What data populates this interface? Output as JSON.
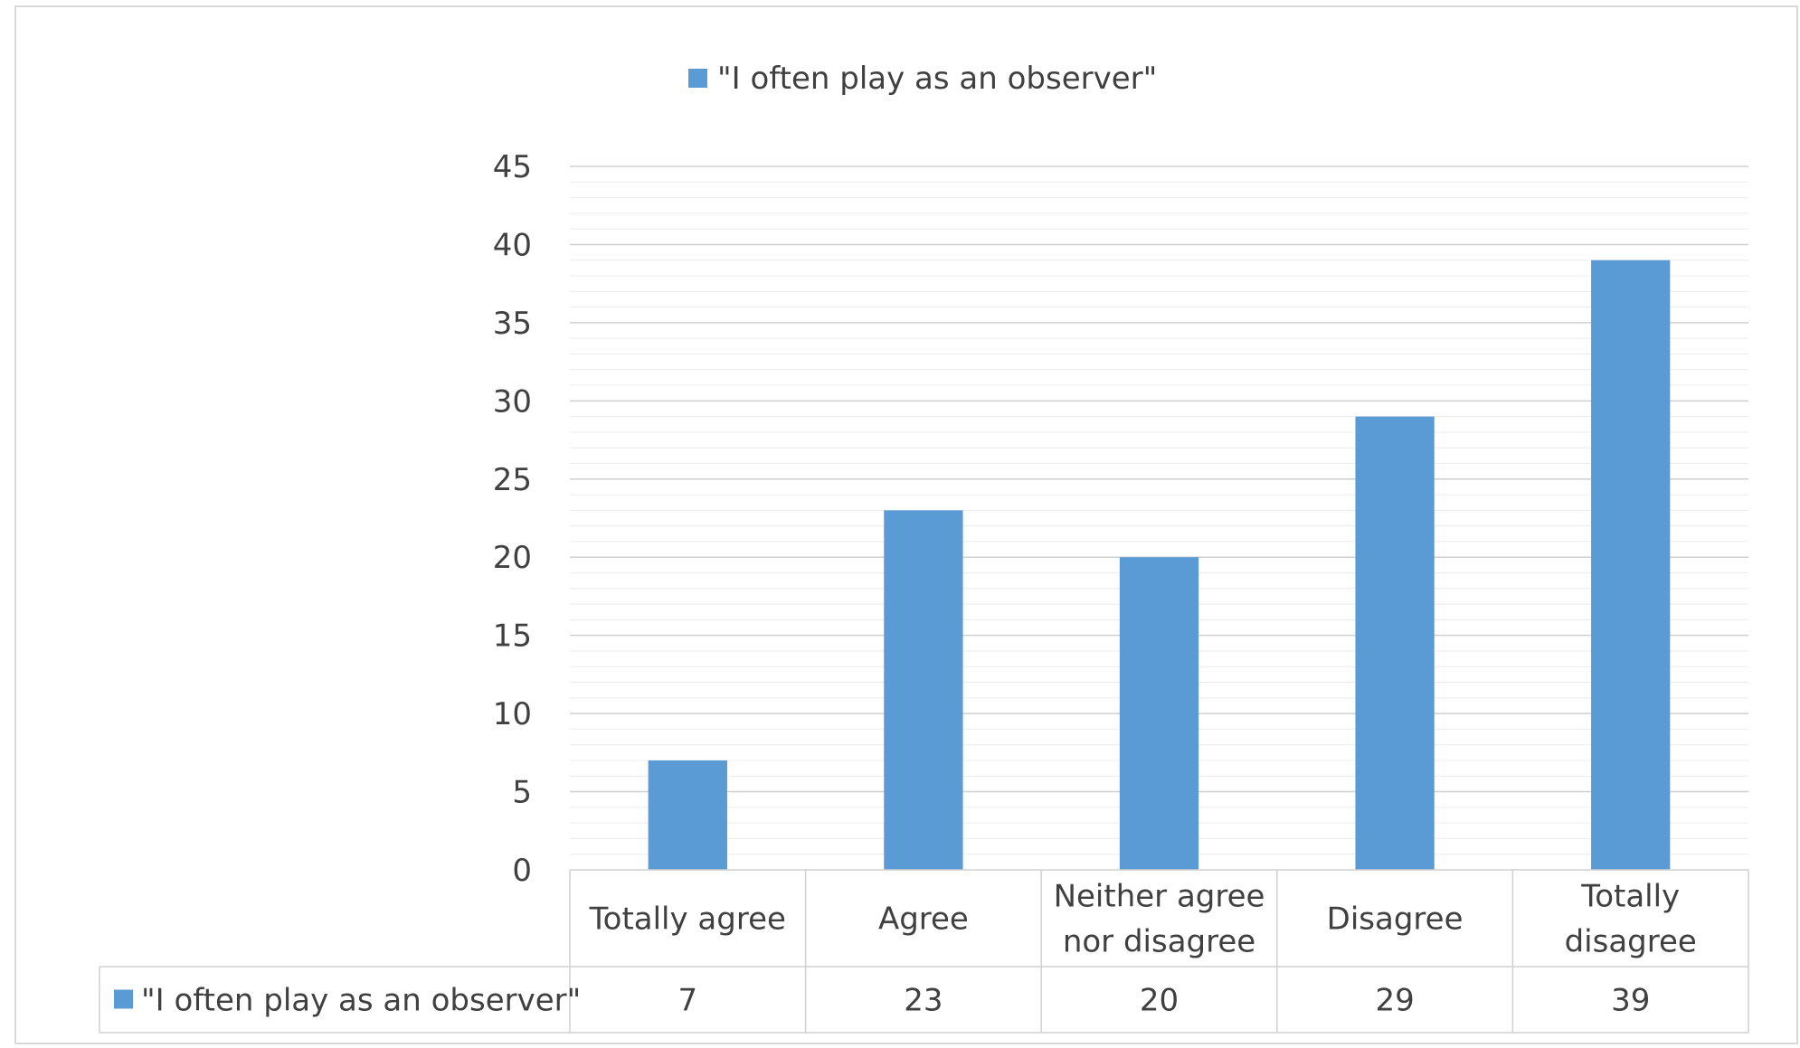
{
  "chart_data": {
    "type": "bar",
    "legend": {
      "position": "top",
      "label": "\"I often play as an observer\""
    },
    "categories": [
      [
        "Totally agree"
      ],
      [
        "Agree"
      ],
      [
        "Neither agree",
        "nor disagree"
      ],
      [
        "Disagree"
      ],
      [
        "Totally",
        "disagree"
      ]
    ],
    "series": [
      {
        "name": "\"I often play as an observer\"",
        "color": "#5b9bd5",
        "values": [
          7,
          23,
          20,
          29,
          39
        ]
      }
    ],
    "ylim": [
      0,
      45
    ],
    "yticks": [
      0,
      5,
      10,
      15,
      20,
      25,
      30,
      35,
      40,
      45
    ],
    "grid": true,
    "minor_grid": true,
    "data_table": true
  }
}
